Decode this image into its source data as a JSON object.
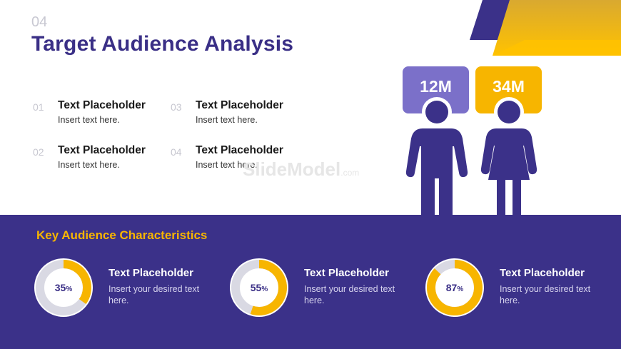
{
  "slide": {
    "number": "04",
    "title": "Target Audience Analysis",
    "watermark": "SlideModel",
    "watermark_suffix": ".com"
  },
  "points": [
    {
      "num": "01",
      "heading": "Text Placeholder",
      "body": "Insert text here."
    },
    {
      "num": "03",
      "heading": "Text Placeholder",
      "body": "Insert text here."
    },
    {
      "num": "02",
      "heading": "Text Placeholder",
      "body": "Insert text here."
    },
    {
      "num": "04",
      "heading": "Text Placeholder",
      "body": "Insert text here."
    }
  ],
  "figures": {
    "male": {
      "value": "12M",
      "color": "#7b70c9",
      "icon": "male-person-icon"
    },
    "female": {
      "value": "34M",
      "color": "#f7b500",
      "icon": "female-person-icon"
    }
  },
  "characteristics": {
    "title": "Key Audience Characteristics",
    "items": [
      {
        "percent": 35,
        "percent_label": "35",
        "percent_sign": "%",
        "heading": "Text Placeholder",
        "body": "Insert your desired text here."
      },
      {
        "percent": 55,
        "percent_label": "55",
        "percent_sign": "%",
        "heading": "Text Placeholder",
        "body": "Insert your desired text here."
      },
      {
        "percent": 87,
        "percent_label": "87",
        "percent_sign": "%",
        "heading": "Text Placeholder",
        "body": "Insert your desired text here."
      }
    ]
  },
  "colors": {
    "primary": "#3b3189",
    "accent": "#f7b500",
    "light_purple": "#7b70c9",
    "ring_track": "#d9d9e3"
  }
}
